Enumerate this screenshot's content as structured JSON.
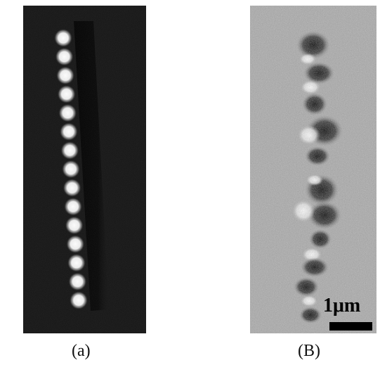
{
  "panels": {
    "a": {
      "caption": "(a)",
      "background_color": "#111111",
      "dot_color": "#ffffff",
      "shadow_color": "#000000",
      "dot_count": 15
    },
    "b": {
      "caption": "(B)",
      "background_color": "#a8a8a8",
      "scale_bar_label": "1μm",
      "scale_bar_color": "#000000"
    }
  }
}
